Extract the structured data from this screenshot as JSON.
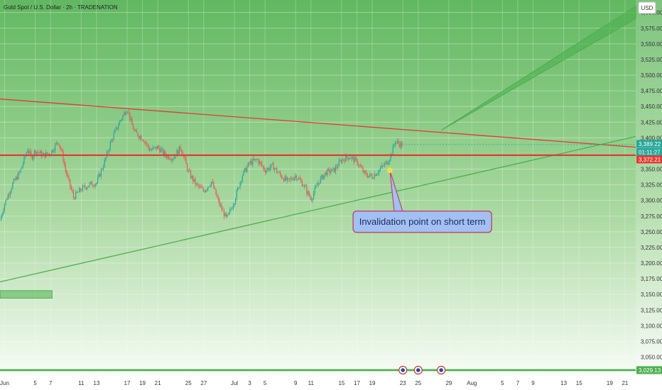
{
  "chart_data": {
    "type": "candlestick",
    "title": "Gold Spot / U.S. Dollar · 2h · TRADENATION",
    "currency": "USD",
    "ylim": [
      3020,
      3620
    ],
    "y_ticks": [
      {
        "label": "3,600.00",
        "value": 3600
      },
      {
        "label": "3,575.00",
        "value": 3575
      },
      {
        "label": "3,550.00",
        "value": 3550
      },
      {
        "label": "3,525.00",
        "value": 3525
      },
      {
        "label": "3,500.00",
        "value": 3500
      },
      {
        "label": "3,475.00",
        "value": 3475
      },
      {
        "label": "3,450.00",
        "value": 3450
      },
      {
        "label": "3,425.00",
        "value": 3425
      },
      {
        "label": "3,400.00",
        "value": 3400
      },
      {
        "label": "3,350.00",
        "value": 3350
      },
      {
        "label": "3,325.00",
        "value": 3325
      },
      {
        "label": "3,300.00",
        "value": 3300
      },
      {
        "label": "3,275.00",
        "value": 3275
      },
      {
        "label": "3,250.00",
        "value": 3250
      },
      {
        "label": "3,225.00",
        "value": 3225
      },
      {
        "label": "3,200.00",
        "value": 3200
      },
      {
        "label": "3,175.00",
        "value": 3175
      },
      {
        "label": "3,150.00",
        "value": 3150
      },
      {
        "label": "3,125.00",
        "value": 3125
      },
      {
        "label": "3,100.00",
        "value": 3100
      },
      {
        "label": "3,075.00",
        "value": 3075
      },
      {
        "label": "3,050.00",
        "value": 3050
      }
    ],
    "x_ticks": [
      "Jun",
      "5",
      "7",
      "11",
      "13",
      "17",
      "19",
      "21",
      "25",
      "27",
      "Jul",
      "3",
      "5",
      "9",
      "11",
      "15",
      "17",
      "19",
      "23",
      "25",
      "29",
      "Aug",
      "5",
      "7",
      "9",
      "13",
      "15",
      "19",
      "21"
    ],
    "x_tick_index": [
      0,
      4,
      6,
      10,
      12,
      16,
      18,
      20,
      24,
      26,
      30,
      32,
      34,
      38,
      40,
      44,
      46,
      48,
      52,
      54,
      58,
      61,
      65,
      67,
      69,
      73,
      75,
      79,
      81
    ],
    "x_range": [
      -0.6,
      82.4
    ],
    "close_path": [
      [
        -0.6,
        3268
      ],
      [
        0,
        3295
      ],
      [
        1,
        3325
      ],
      [
        2,
        3345
      ],
      [
        3,
        3382
      ],
      [
        3.5,
        3368
      ],
      [
        4,
        3380
      ],
      [
        5,
        3372
      ],
      [
        6,
        3376
      ],
      [
        7,
        3395
      ],
      [
        7.5,
        3375
      ],
      [
        8,
        3345
      ],
      [
        9,
        3305
      ],
      [
        10,
        3318
      ],
      [
        11,
        3325
      ],
      [
        12,
        3328
      ],
      [
        13,
        3360
      ],
      [
        14,
        3398
      ],
      [
        15,
        3425
      ],
      [
        16,
        3448
      ],
      [
        16.5,
        3425
      ],
      [
        17,
        3408
      ],
      [
        18,
        3400
      ],
      [
        19,
        3380
      ],
      [
        20,
        3385
      ],
      [
        21,
        3372
      ],
      [
        22,
        3368
      ],
      [
        23,
        3385
      ],
      [
        24,
        3345
      ],
      [
        25,
        3325
      ],
      [
        26,
        3315
      ],
      [
        27,
        3330
      ],
      [
        28,
        3295
      ],
      [
        29,
        3270
      ],
      [
        30,
        3300
      ],
      [
        31,
        3340
      ],
      [
        32,
        3360
      ],
      [
        33,
        3365
      ],
      [
        34,
        3348
      ],
      [
        35,
        3355
      ],
      [
        36,
        3340
      ],
      [
        37,
        3330
      ],
      [
        38,
        3340
      ],
      [
        39,
        3325
      ],
      [
        40,
        3302
      ],
      [
        41,
        3330
      ],
      [
        42,
        3345
      ],
      [
        43,
        3348
      ],
      [
        44,
        3365
      ],
      [
        45,
        3370
      ],
      [
        46,
        3362
      ],
      [
        47,
        3342
      ],
      [
        48,
        3338
      ],
      [
        49,
        3350
      ],
      [
        50,
        3362
      ],
      [
        50.5,
        3375
      ],
      [
        51,
        3395
      ],
      [
        51.5,
        3390
      ],
      [
        52,
        3389
      ]
    ],
    "series": [
      {
        "name": "Last price",
        "value": 3389.22,
        "label": "3,389.22",
        "countdown": "01:11:27",
        "color": "#26a69a"
      },
      {
        "name": "Resistance level",
        "value": 3372.21,
        "label": "3,372.21",
        "color": "#e53935"
      },
      {
        "name": "Support level",
        "value": 3029.13,
        "label": "3,029.13",
        "color": "#4caf50"
      }
    ],
    "trendlines": {
      "descending": {
        "from": [
          -0.6,
          3462
        ],
        "to": [
          82.4,
          3385
        ],
        "color": "#e53935"
      },
      "ascending": {
        "from": [
          -0.6,
          3170
        ],
        "to": [
          82.4,
          3402
        ],
        "color": "#4caf50"
      },
      "forecast_wedge": {
        "tip": [
          57,
          3412
        ],
        "upper": [
          82.4,
          3610
        ],
        "lower": [
          82.4,
          3590
        ],
        "color": "#4caf50"
      }
    },
    "zone": {
      "x_from": -0.6,
      "x_to": 6.2,
      "y_from": 3156,
      "y_to": 3144,
      "color": "#4caf50"
    },
    "event_markers_x": [
      52,
      54,
      57
    ],
    "annotation": {
      "text": "Invalidation point on short term",
      "point": [
        50.3,
        3348
      ],
      "box_x": 45.5,
      "box_y": 3283
    }
  },
  "colors": {
    "background_top": "#61b861",
    "background_bottom": "#ffffff",
    "candle_up": "#26a69a",
    "candle_down": "#ef5350",
    "annotation_fill": "#a3c0f2",
    "annotation_border": "#c0446e",
    "highlight_dot": "#f4e04d"
  }
}
